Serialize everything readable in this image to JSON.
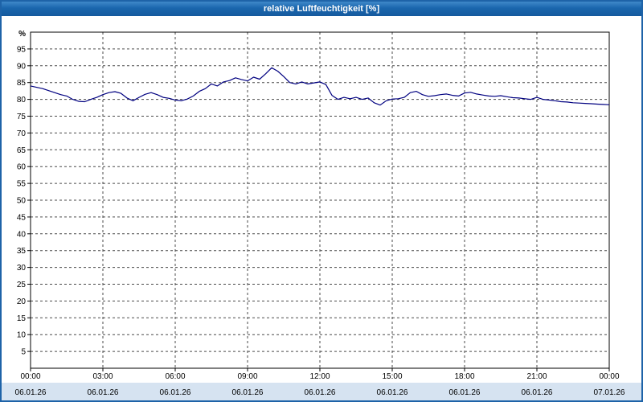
{
  "window_title": "relative Luftfeuchtigkeit [%]",
  "colors": {
    "line": "#000080",
    "grid": "#4a4a4a",
    "frame": "#000000",
    "border": "#1e63a8",
    "title_text": "#ffffff",
    "axis_text": "#000000",
    "date_strip_bg": "#d6e3f1"
  },
  "chart_data": {
    "type": "line",
    "title": "relative Luftfeuchtigkeit [%]",
    "ylabel": "%",
    "ylim": [
      0,
      100
    ],
    "grid": "dashed",
    "legend": "none",
    "y_ticks": [
      5,
      10,
      15,
      20,
      25,
      30,
      35,
      40,
      45,
      50,
      55,
      60,
      65,
      70,
      75,
      80,
      85,
      90,
      95
    ],
    "x_ticks": [
      {
        "hour": 0,
        "time": "00:00",
        "date": "06.01.26"
      },
      {
        "hour": 3,
        "time": "03:00",
        "date": "06.01.26"
      },
      {
        "hour": 6,
        "time": "06:00",
        "date": "06.01.26"
      },
      {
        "hour": 9,
        "time": "09:00",
        "date": "06.01.26"
      },
      {
        "hour": 12,
        "time": "12:00",
        "date": "06.01.26"
      },
      {
        "hour": 15,
        "time": "15:00",
        "date": "06.01.26"
      },
      {
        "hour": 18,
        "time": "18:00",
        "date": "06.01.26"
      },
      {
        "hour": 21,
        "time": "21:00",
        "date": "06.01.26"
      },
      {
        "hour": 24,
        "time": "00:00",
        "date": "07.01.26"
      }
    ],
    "series": [
      {
        "name": "relative Luftfeuchtigkeit",
        "color": "#000080",
        "x_hours": [
          0,
          0.25,
          0.5,
          0.75,
          1,
          1.25,
          1.5,
          1.75,
          2,
          2.25,
          2.5,
          2.75,
          3,
          3.25,
          3.5,
          3.75,
          4,
          4.25,
          4.5,
          4.75,
          5,
          5.25,
          5.5,
          5.75,
          6,
          6.25,
          6.5,
          6.75,
          7,
          7.25,
          7.5,
          7.75,
          8,
          8.25,
          8.5,
          8.75,
          9,
          9.25,
          9.5,
          9.75,
          10,
          10.25,
          10.5,
          10.75,
          11,
          11.25,
          11.5,
          11.75,
          12,
          12.25,
          12.5,
          12.75,
          13,
          13.25,
          13.5,
          13.75,
          14,
          14.25,
          14.5,
          14.75,
          15,
          15.25,
          15.5,
          15.75,
          16,
          16.25,
          16.5,
          16.75,
          17,
          17.25,
          17.5,
          17.75,
          18,
          18.25,
          18.5,
          18.75,
          19,
          19.25,
          19.5,
          19.75,
          20,
          20.25,
          20.5,
          20.75,
          21,
          21.25,
          21.5,
          21.75,
          22,
          22.25,
          22.5,
          22.75,
          23,
          23.25,
          23.5,
          23.75,
          24
        ],
        "values": [
          84.0,
          83.6,
          83.2,
          82.6,
          82.0,
          81.4,
          81.0,
          80.0,
          79.4,
          79.3,
          80.0,
          80.6,
          81.4,
          82.0,
          82.3,
          81.8,
          80.4,
          79.6,
          80.6,
          81.5,
          82.0,
          81.4,
          80.6,
          80.3,
          79.8,
          79.6,
          80.1,
          81.0,
          82.4,
          83.2,
          84.6,
          84.0,
          85.2,
          85.6,
          86.4,
          85.9,
          85.5,
          86.6,
          86.0,
          87.6,
          89.4,
          88.4,
          86.8,
          85.0,
          84.6,
          85.2,
          84.6,
          84.9,
          85.2,
          84.4,
          81.2,
          80.0,
          80.6,
          80.2,
          80.6,
          80.0,
          80.4,
          79.0,
          78.3,
          79.6,
          80.1,
          80.2,
          80.6,
          82.0,
          82.4,
          81.4,
          80.9,
          81.1,
          81.4,
          81.6,
          81.2,
          81.0,
          81.9,
          82.1,
          81.6,
          81.3,
          81.0,
          80.9,
          81.1,
          80.8,
          80.5,
          80.4,
          80.2,
          80.0,
          80.6,
          80.0,
          79.8,
          79.6,
          79.3,
          79.2,
          79.0,
          78.9,
          78.8,
          78.7,
          78.6,
          78.5,
          78.4
        ]
      }
    ]
  }
}
